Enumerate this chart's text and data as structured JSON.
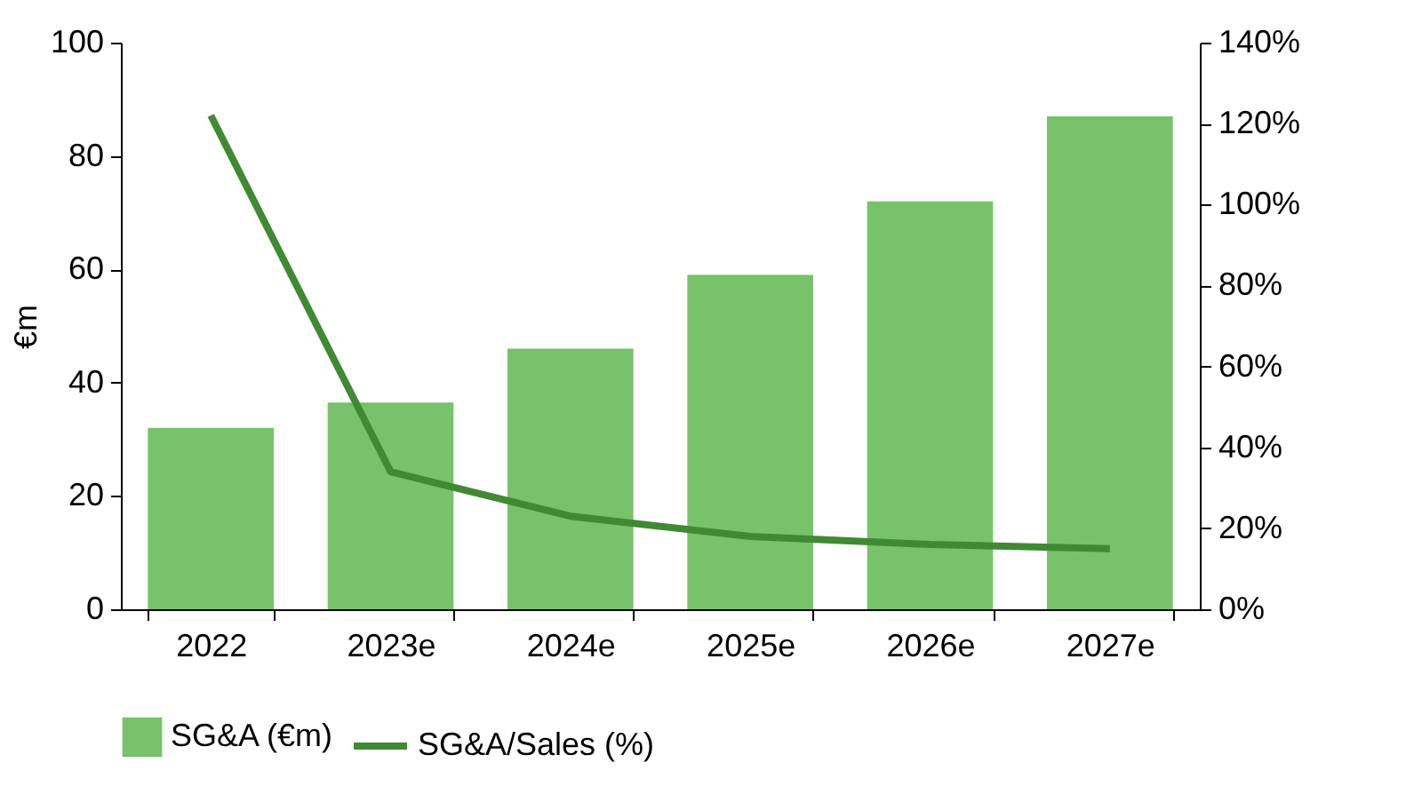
{
  "chart_data": {
    "type": "bar",
    "ylabel": "€m",
    "categories": [
      "2022",
      "2023e",
      "2024e",
      "2025e",
      "2026e",
      "2027e"
    ],
    "series": [
      {
        "name": "SG&A (€m)",
        "color": "#77c26a",
        "values": [
          32,
          36.5,
          46,
          59,
          72,
          87
        ]
      },
      {
        "name": "SG&A/Sales (%)",
        "type": "line",
        "axis": "y2",
        "color": "#3f8a33",
        "values": [
          122,
          34,
          23,
          18,
          16,
          15
        ]
      }
    ],
    "ylim": [
      0,
      100
    ],
    "yticks": [
      0,
      20,
      40,
      60,
      80,
      100
    ],
    "y2lim": [
      0,
      140
    ],
    "y2ticks": [
      {
        "value": 0,
        "label": "0%"
      },
      {
        "value": 20,
        "label": "20%"
      },
      {
        "value": 40,
        "label": "40%"
      },
      {
        "value": 60,
        "label": "60%"
      },
      {
        "value": 80,
        "label": "80%"
      },
      {
        "value": 100,
        "label": "100%"
      },
      {
        "value": 120,
        "label": "120%"
      },
      {
        "value": 140,
        "label": "140%"
      }
    ],
    "grid": false,
    "legend": "bottom",
    "line_style": "solid"
  }
}
